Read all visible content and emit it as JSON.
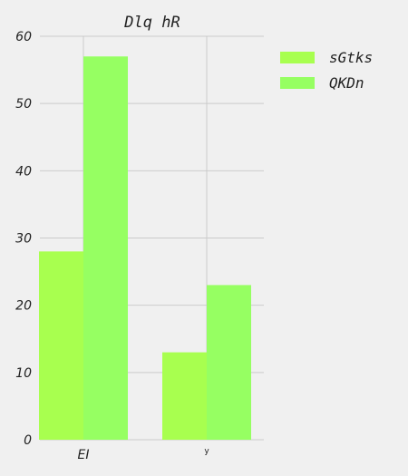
{
  "chart_data": {
    "type": "bar",
    "title": "Dlq hR",
    "categories": [
      "EI",
      "y"
    ],
    "series": [
      {
        "name": "sGtks",
        "values": [
          28,
          13
        ],
        "color": "#a8ff4f"
      },
      {
        "name": "QKDn",
        "values": [
          57,
          23
        ],
        "color": "#96ff62"
      }
    ],
    "ylim": [
      0,
      60
    ],
    "yticks": [
      0,
      10,
      20,
      30,
      40,
      50,
      60
    ],
    "xlabel": "",
    "ylabel": "",
    "grid": true,
    "legend": "top-right",
    "background": "#f0f0f0",
    "grid_color": "#cbcbcb"
  }
}
